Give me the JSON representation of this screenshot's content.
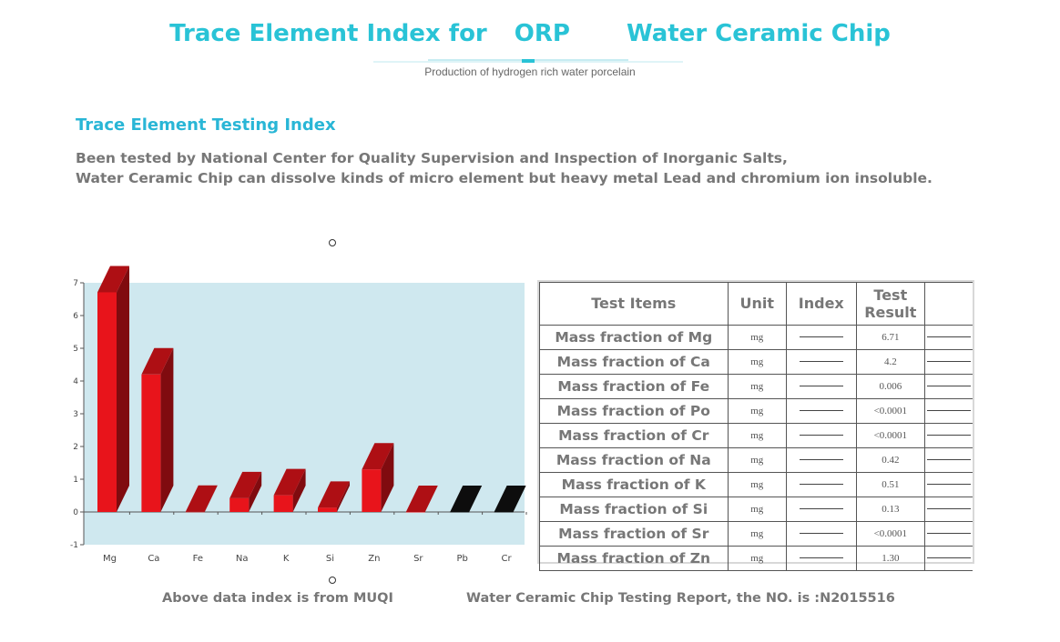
{
  "header": {
    "title_part1": "Trace Element Index for",
    "title_part2": "ORP",
    "title_part3": "Water Ceramic Chip",
    "subtitle": "Production of hydrogen rich water porcelain"
  },
  "section": {
    "heading": "Trace Element Testing Index",
    "desc_line1": "Been tested by National Center for Quality Supervision and Inspection of Inorganic Salts,",
    "desc_line2": "Water Ceramic Chip can dissolve kinds of micro element but heavy metal Lead and chromium ion insoluble."
  },
  "chart_data": {
    "type": "bar",
    "categories": [
      "Mg",
      "Ca",
      "Fe",
      "Na",
      "K",
      "Si",
      "Zn",
      "Sr",
      "Pb",
      "Cr"
    ],
    "values": [
      6.71,
      4.2,
      0.006,
      0.42,
      0.51,
      0.13,
      1.3,
      0.0001,
      0.0001,
      0.0001
    ],
    "ylim": [
      -1,
      7
    ],
    "yticks": [
      -1,
      0,
      1,
      2,
      3,
      4,
      5,
      6,
      7
    ],
    "bar_colors": [
      "#e8141b",
      "#e8141b",
      "#e8141b",
      "#e8141b",
      "#e8141b",
      "#e8141b",
      "#e8141b",
      "#e8141b",
      "#111111",
      "#111111"
    ],
    "plot_background": "#cfe8ef",
    "title": "",
    "xlabel": "",
    "ylabel": ""
  },
  "table": {
    "headers": [
      "Test Items",
      "Unit",
      "Index",
      "Test Result"
    ],
    "rows": [
      {
        "item": "Mass fraction of Mg",
        "unit": "mg",
        "result": "6.71"
      },
      {
        "item": "Mass fraction of Ca",
        "unit": "mg",
        "result": "4.2"
      },
      {
        "item": "Mass fraction of Fe",
        "unit": "mg",
        "result": "0.006"
      },
      {
        "item": "Mass fraction of Po",
        "unit": "mg",
        "result": "<0.0001"
      },
      {
        "item": "Mass fraction of Cr",
        "unit": "mg",
        "result": "<0.0001"
      },
      {
        "item": "Mass fraction of Na",
        "unit": "mg",
        "result": "0.42"
      },
      {
        "item": "Mass fraction of K",
        "unit": "mg",
        "result": "0.51"
      },
      {
        "item": "Mass fraction of Si",
        "unit": "mg",
        "result": "0.13"
      },
      {
        "item": "Mass fraction of Sr",
        "unit": "mg",
        "result": "<0.0001"
      },
      {
        "item": "Mass fraction of Zn",
        "unit": "mg",
        "result": "1.30"
      }
    ]
  },
  "footer": {
    "left": "Above data index is from MUQI",
    "right": "Water Ceramic Chip Testing Report, the NO. is :N2015516"
  },
  "colors": {
    "title": "#29c3d6",
    "heading": "#29b6d6",
    "body_text": "#777777"
  }
}
